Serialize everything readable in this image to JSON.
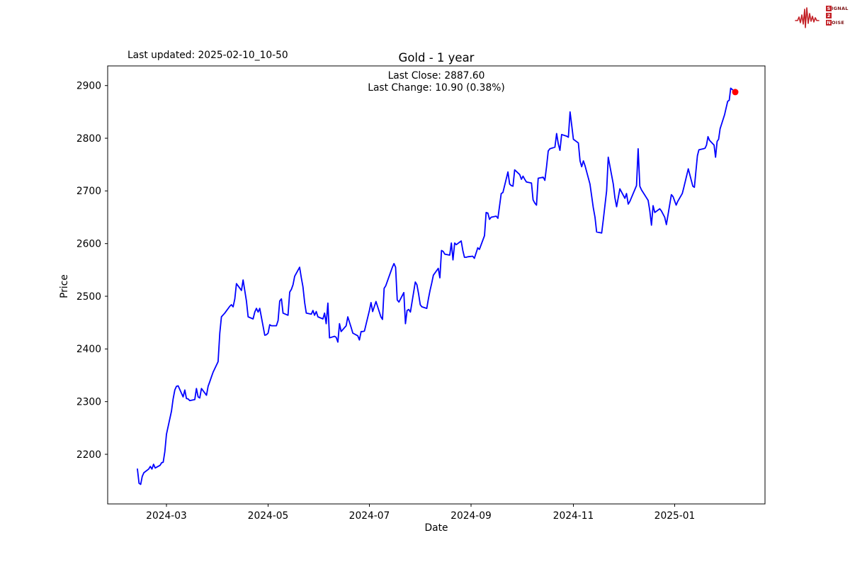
{
  "header": {
    "last_updated": "Last updated: 2025-02-10_10-50"
  },
  "logo": {
    "name": "signal-2-noise",
    "box_color": "#c32127",
    "text_color": "#7c1517",
    "wave_color": "#c32127",
    "rows": [
      {
        "boxed": "S",
        "rest": "IGNAL"
      },
      {
        "boxed": "2",
        "rest": ""
      },
      {
        "boxed": "N",
        "rest": "OISE"
      }
    ]
  },
  "chart_data": {
    "type": "line",
    "title": "Gold - 1 year",
    "xlabel": "Date",
    "ylabel": "Price",
    "annotations": {
      "last_close": "Last Close: 2887.60",
      "last_change": "Last Change: 10.90 (0.38%)"
    },
    "line_color": "#0000ff",
    "marker_color": "#ff0000",
    "grid": false,
    "legend": "none",
    "ylim": [
      2105.8,
      2937.3
    ],
    "yticks": [
      2200,
      2300,
      2400,
      2500,
      2600,
      2700,
      2800,
      2900
    ],
    "xticks": [
      {
        "label": "2024-03",
        "date": "2024-03-01"
      },
      {
        "label": "2024-05",
        "date": "2024-05-01"
      },
      {
        "label": "2024-07",
        "date": "2024-07-01"
      },
      {
        "label": "2024-09",
        "date": "2024-09-01"
      },
      {
        "label": "2024-11",
        "date": "2024-11-01"
      },
      {
        "label": "2025-01",
        "date": "2025-01-01"
      }
    ],
    "x_anchors": [
      [
        "2024-02-12",
        194
      ],
      [
        "2024-03-01",
        235
      ],
      [
        "2024-05-01",
        378.5
      ],
      [
        "2024-07-01",
        521.5
      ],
      [
        "2024-09-01",
        665
      ],
      [
        "2024-11-01",
        809.5
      ],
      [
        "2025-01-01",
        952.5
      ],
      [
        "2025-02-10",
        1038
      ]
    ],
    "last_close": 2887.6,
    "last_change": 10.9,
    "last_change_pct": 0.38,
    "series": [
      {
        "name": "Gold",
        "data": [
          [
            "2024-02-12",
            2172
          ],
          [
            "2024-02-13",
            2145
          ],
          [
            "2024-02-14",
            2143
          ],
          [
            "2024-02-15",
            2158
          ],
          [
            "2024-02-16",
            2165
          ],
          [
            "2024-02-19",
            2172
          ],
          [
            "2024-02-20",
            2177
          ],
          [
            "2024-02-21",
            2172
          ],
          [
            "2024-02-22",
            2181
          ],
          [
            "2024-02-23",
            2174
          ],
          [
            "2024-02-26",
            2179
          ],
          [
            "2024-02-27",
            2184
          ],
          [
            "2024-02-28",
            2185
          ],
          [
            "2024-02-29",
            2205
          ],
          [
            "2024-03-01",
            2238
          ],
          [
            "2024-03-04",
            2282
          ],
          [
            "2024-03-05",
            2305
          ],
          [
            "2024-03-06",
            2322
          ],
          [
            "2024-03-07",
            2329
          ],
          [
            "2024-03-08",
            2330
          ],
          [
            "2024-03-11",
            2309
          ],
          [
            "2024-03-12",
            2322
          ],
          [
            "2024-03-13",
            2306
          ],
          [
            "2024-03-14",
            2305
          ],
          [
            "2024-03-15",
            2302
          ],
          [
            "2024-03-18",
            2304
          ],
          [
            "2024-03-19",
            2325
          ],
          [
            "2024-03-20",
            2309
          ],
          [
            "2024-03-21",
            2307
          ],
          [
            "2024-03-22",
            2325
          ],
          [
            "2024-03-25",
            2312
          ],
          [
            "2024-03-26",
            2329
          ],
          [
            "2024-03-27",
            2338
          ],
          [
            "2024-03-28",
            2347
          ],
          [
            "2024-03-29",
            2356
          ],
          [
            "2024-04-01",
            2376
          ],
          [
            "2024-04-02",
            2430
          ],
          [
            "2024-04-03",
            2461
          ],
          [
            "2024-04-05",
            2468
          ],
          [
            "2024-04-08",
            2481
          ],
          [
            "2024-04-09",
            2484
          ],
          [
            "2024-04-10",
            2480
          ],
          [
            "2024-04-11",
            2495
          ],
          [
            "2024-04-12",
            2524
          ],
          [
            "2024-04-15",
            2511
          ],
          [
            "2024-04-16",
            2531
          ],
          [
            "2024-04-18",
            2491
          ],
          [
            "2024-04-19",
            2461
          ],
          [
            "2024-04-22",
            2457
          ],
          [
            "2024-04-23",
            2470
          ],
          [
            "2024-04-24",
            2477
          ],
          [
            "2024-04-25",
            2470
          ],
          [
            "2024-04-26",
            2477
          ],
          [
            "2024-04-29",
            2426
          ],
          [
            "2024-04-30",
            2427
          ],
          [
            "2024-05-01",
            2430
          ],
          [
            "2024-05-02",
            2446
          ],
          [
            "2024-05-03",
            2444
          ],
          [
            "2024-05-06",
            2444
          ],
          [
            "2024-05-07",
            2454
          ],
          [
            "2024-05-08",
            2491
          ],
          [
            "2024-05-09",
            2495
          ],
          [
            "2024-05-10",
            2468
          ],
          [
            "2024-05-13",
            2464
          ],
          [
            "2024-05-14",
            2508
          ],
          [
            "2024-05-15",
            2513
          ],
          [
            "2024-05-16",
            2522
          ],
          [
            "2024-05-17",
            2538
          ],
          [
            "2024-05-20",
            2555
          ],
          [
            "2024-05-21",
            2535
          ],
          [
            "2024-05-22",
            2518
          ],
          [
            "2024-05-23",
            2488
          ],
          [
            "2024-05-24",
            2468
          ],
          [
            "2024-05-27",
            2466
          ],
          [
            "2024-05-28",
            2473
          ],
          [
            "2024-05-29",
            2464
          ],
          [
            "2024-05-30",
            2471
          ],
          [
            "2024-05-31",
            2461
          ],
          [
            "2024-06-03",
            2457
          ],
          [
            "2024-06-04",
            2468
          ],
          [
            "2024-06-05",
            2448
          ],
          [
            "2024-06-06",
            2487
          ],
          [
            "2024-06-07",
            2421
          ],
          [
            "2024-06-10",
            2424
          ],
          [
            "2024-06-11",
            2422
          ],
          [
            "2024-06-12",
            2413
          ],
          [
            "2024-06-13",
            2448
          ],
          [
            "2024-06-14",
            2433
          ],
          [
            "2024-06-17",
            2444
          ],
          [
            "2024-06-18",
            2461
          ],
          [
            "2024-06-20",
            2441
          ],
          [
            "2024-06-21",
            2430
          ],
          [
            "2024-06-24",
            2425
          ],
          [
            "2024-06-25",
            2417
          ],
          [
            "2024-06-26",
            2433
          ],
          [
            "2024-06-27",
            2433
          ],
          [
            "2024-06-28",
            2434
          ],
          [
            "2024-07-01",
            2473
          ],
          [
            "2024-07-02",
            2488
          ],
          [
            "2024-07-03",
            2471
          ],
          [
            "2024-07-05",
            2490
          ],
          [
            "2024-07-08",
            2461
          ],
          [
            "2024-07-09",
            2456
          ],
          [
            "2024-07-10",
            2515
          ],
          [
            "2024-07-11",
            2520
          ],
          [
            "2024-07-15",
            2555
          ],
          [
            "2024-07-16",
            2562
          ],
          [
            "2024-07-17",
            2555
          ],
          [
            "2024-07-18",
            2493
          ],
          [
            "2024-07-19",
            2489
          ],
          [
            "2024-07-22",
            2507
          ],
          [
            "2024-07-23",
            2448
          ],
          [
            "2024-07-24",
            2473
          ],
          [
            "2024-07-25",
            2475
          ],
          [
            "2024-07-26",
            2470
          ],
          [
            "2024-07-29",
            2527
          ],
          [
            "2024-07-30",
            2522
          ],
          [
            "2024-07-31",
            2505
          ],
          [
            "2024-08-01",
            2484
          ],
          [
            "2024-08-02",
            2480
          ],
          [
            "2024-08-05",
            2477
          ],
          [
            "2024-08-06",
            2495
          ],
          [
            "2024-08-07",
            2511
          ],
          [
            "2024-08-08",
            2525
          ],
          [
            "2024-08-09",
            2540
          ],
          [
            "2024-08-12",
            2553
          ],
          [
            "2024-08-13",
            2535
          ],
          [
            "2024-08-14",
            2587
          ],
          [
            "2024-08-15",
            2585
          ],
          [
            "2024-08-16",
            2580
          ],
          [
            "2024-08-19",
            2578
          ],
          [
            "2024-08-20",
            2601
          ],
          [
            "2024-08-21",
            2569
          ],
          [
            "2024-08-22",
            2601
          ],
          [
            "2024-08-23",
            2598
          ],
          [
            "2024-08-26",
            2605
          ],
          [
            "2024-08-27",
            2587
          ],
          [
            "2024-08-28",
            2574
          ],
          [
            "2024-08-29",
            2574
          ],
          [
            "2024-08-30",
            2575
          ],
          [
            "2024-09-02",
            2576
          ],
          [
            "2024-09-03",
            2572
          ],
          [
            "2024-09-05",
            2592
          ],
          [
            "2024-09-06",
            2589
          ],
          [
            "2024-09-09",
            2615
          ],
          [
            "2024-09-10",
            2659
          ],
          [
            "2024-09-11",
            2658
          ],
          [
            "2024-09-12",
            2646
          ],
          [
            "2024-09-13",
            2650
          ],
          [
            "2024-09-16",
            2652
          ],
          [
            "2024-09-17",
            2648
          ],
          [
            "2024-09-18",
            2672
          ],
          [
            "2024-09-19",
            2695
          ],
          [
            "2024-09-20",
            2697
          ],
          [
            "2024-09-23",
            2736
          ],
          [
            "2024-09-24",
            2713
          ],
          [
            "2024-09-25",
            2710
          ],
          [
            "2024-09-26",
            2709
          ],
          [
            "2024-09-27",
            2740
          ],
          [
            "2024-09-30",
            2731
          ],
          [
            "2024-10-01",
            2722
          ],
          [
            "2024-10-02",
            2728
          ],
          [
            "2024-10-03",
            2722
          ],
          [
            "2024-10-04",
            2717
          ],
          [
            "2024-10-07",
            2715
          ],
          [
            "2024-10-08",
            2683
          ],
          [
            "2024-10-09",
            2677
          ],
          [
            "2024-10-10",
            2673
          ],
          [
            "2024-10-11",
            2724
          ],
          [
            "2024-10-14",
            2726
          ],
          [
            "2024-10-15",
            2720
          ],
          [
            "2024-10-16",
            2746
          ],
          [
            "2024-10-17",
            2776
          ],
          [
            "2024-10-18",
            2780
          ],
          [
            "2024-10-21",
            2783
          ],
          [
            "2024-10-22",
            2809
          ],
          [
            "2024-10-23",
            2789
          ],
          [
            "2024-10-24",
            2777
          ],
          [
            "2024-10-25",
            2807
          ],
          [
            "2024-10-28",
            2804
          ],
          [
            "2024-10-29",
            2802
          ],
          [
            "2024-10-30",
            2850
          ],
          [
            "2024-10-31",
            2825
          ],
          [
            "2024-11-01",
            2798
          ],
          [
            "2024-11-04",
            2791
          ],
          [
            "2024-11-05",
            2757
          ],
          [
            "2024-11-06",
            2746
          ],
          [
            "2024-11-07",
            2757
          ],
          [
            "2024-11-08",
            2748
          ],
          [
            "2024-11-11",
            2713
          ],
          [
            "2024-11-12",
            2690
          ],
          [
            "2024-11-13",
            2668
          ],
          [
            "2024-11-14",
            2650
          ],
          [
            "2024-11-15",
            2622
          ],
          [
            "2024-11-18",
            2620
          ],
          [
            "2024-11-19",
            2645
          ],
          [
            "2024-11-20",
            2672
          ],
          [
            "2024-11-21",
            2700
          ],
          [
            "2024-11-22",
            2764
          ],
          [
            "2024-11-25",
            2713
          ],
          [
            "2024-11-26",
            2687
          ],
          [
            "2024-11-27",
            2670
          ],
          [
            "2024-11-29",
            2704
          ],
          [
            "2024-12-02",
            2686
          ],
          [
            "2024-12-03",
            2695
          ],
          [
            "2024-12-04",
            2675
          ],
          [
            "2024-12-05",
            2680
          ],
          [
            "2024-12-09",
            2710
          ],
          [
            "2024-12-10",
            2780
          ],
          [
            "2024-12-11",
            2709
          ],
          [
            "2024-12-12",
            2702
          ],
          [
            "2024-12-13",
            2697
          ],
          [
            "2024-12-16",
            2682
          ],
          [
            "2024-12-17",
            2663
          ],
          [
            "2024-12-18",
            2635
          ],
          [
            "2024-12-19",
            2672
          ],
          [
            "2024-12-20",
            2659
          ],
          [
            "2024-12-23",
            2666
          ],
          [
            "2024-12-24",
            2662
          ],
          [
            "2024-12-26",
            2650
          ],
          [
            "2024-12-27",
            2636
          ],
          [
            "2024-12-30",
            2693
          ],
          [
            "2024-12-31",
            2689
          ],
          [
            "2025-01-02",
            2673
          ],
          [
            "2025-01-03",
            2680
          ],
          [
            "2025-01-06",
            2695
          ],
          [
            "2025-01-07",
            2706
          ],
          [
            "2025-01-10",
            2742
          ],
          [
            "2025-01-13",
            2709
          ],
          [
            "2025-01-14",
            2707
          ],
          [
            "2025-01-16",
            2767
          ],
          [
            "2025-01-17",
            2778
          ],
          [
            "2025-01-20",
            2780
          ],
          [
            "2025-01-21",
            2781
          ],
          [
            "2025-01-22",
            2787
          ],
          [
            "2025-01-23",
            2803
          ],
          [
            "2025-01-24",
            2796
          ],
          [
            "2025-01-27",
            2787
          ],
          [
            "2025-01-28",
            2764
          ],
          [
            "2025-01-29",
            2794
          ],
          [
            "2025-01-30",
            2798
          ],
          [
            "2025-01-31",
            2818
          ],
          [
            "2025-02-03",
            2845
          ],
          [
            "2025-02-04",
            2858
          ],
          [
            "2025-02-05",
            2870
          ],
          [
            "2025-02-06",
            2872
          ],
          [
            "2025-02-07",
            2895
          ],
          [
            "2025-02-10",
            2887.6
          ]
        ]
      }
    ]
  }
}
